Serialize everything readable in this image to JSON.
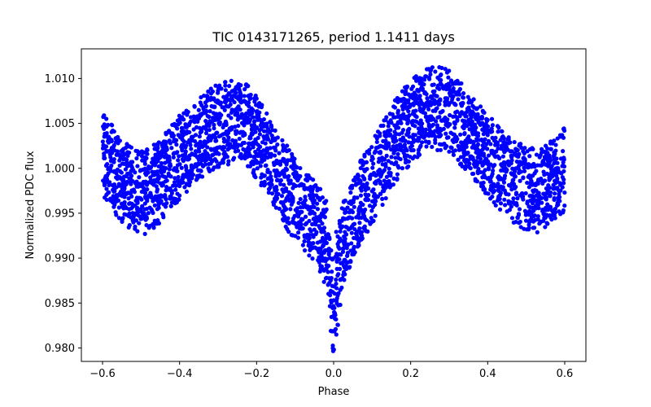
{
  "chart_data": {
    "type": "scatter",
    "title": "TIC 0143171265, period 1.1411 days",
    "xlabel": "Phase",
    "ylabel": "Normalized PDC flux",
    "xlim": [
      -0.655,
      0.655
    ],
    "ylim": [
      0.9785,
      1.0133
    ],
    "xticks": [
      -0.6,
      -0.4,
      -0.2,
      0.0,
      0.2,
      0.4,
      0.6
    ],
    "xtick_labels": [
      "−0.6",
      "−0.4",
      "−0.2",
      "0.0",
      "0.2",
      "0.4",
      "0.6"
    ],
    "yticks": [
      0.98,
      0.985,
      0.99,
      0.995,
      1.0,
      1.005,
      1.01
    ],
    "ytick_labels": [
      "0.980",
      "0.985",
      "0.990",
      "0.995",
      "1.000",
      "1.005",
      "1.010"
    ],
    "grid": false,
    "legend": "none",
    "marker_color": "#0000ff",
    "series": [
      {
        "values_description": "phase-folded light curve",
        "points": [
          [
            -0.6,
            1.0015
          ],
          [
            -0.58,
            1.0005
          ],
          [
            -0.56,
            0.999
          ],
          [
            -0.54,
            0.9982
          ],
          [
            -0.52,
            0.9975
          ],
          [
            -0.5,
            0.9972
          ],
          [
            -0.48,
            0.9975
          ],
          [
            -0.46,
            0.9982
          ],
          [
            -0.44,
            0.9992
          ],
          [
            -0.42,
            1.0003
          ],
          [
            -0.4,
            1.0012
          ],
          [
            -0.38,
            1.002
          ],
          [
            -0.36,
            1.0027
          ],
          [
            -0.34,
            1.0035
          ],
          [
            -0.32,
            1.0042
          ],
          [
            -0.3,
            1.0047
          ],
          [
            -0.28,
            1.005
          ],
          [
            -0.26,
            1.0052
          ],
          [
            -0.24,
            1.005
          ],
          [
            -0.22,
            1.0045
          ],
          [
            -0.2,
            1.0035
          ],
          [
            -0.18,
            1.0022
          ],
          [
            -0.16,
            1.0008
          ],
          [
            -0.14,
            0.9993
          ],
          [
            -0.12,
            0.9978
          ],
          [
            -0.1,
            0.9965
          ],
          [
            -0.08,
            0.9955
          ],
          [
            -0.06,
            0.9945
          ],
          [
            -0.04,
            0.9935
          ],
          [
            -0.02,
            0.9922
          ],
          [
            0.0,
            0.9885
          ],
          [
            0.02,
            0.9915
          ],
          [
            0.04,
            0.9935
          ],
          [
            0.06,
            0.9955
          ],
          [
            0.08,
            0.997
          ],
          [
            0.1,
            0.9985
          ],
          [
            0.12,
            1.0
          ],
          [
            0.14,
            1.0015
          ],
          [
            0.16,
            1.003
          ],
          [
            0.18,
            1.0042
          ],
          [
            0.2,
            1.0052
          ],
          [
            0.22,
            1.006
          ],
          [
            0.24,
            1.0064
          ],
          [
            0.26,
            1.0066
          ],
          [
            0.28,
            1.0067
          ],
          [
            0.3,
            1.0063
          ],
          [
            0.32,
            1.0055
          ],
          [
            0.34,
            1.0045
          ],
          [
            0.36,
            1.0035
          ],
          [
            0.38,
            1.0025
          ],
          [
            0.4,
            1.0015
          ],
          [
            0.42,
            1.0005
          ],
          [
            0.44,
            0.9995
          ],
          [
            0.46,
            0.9988
          ],
          [
            0.48,
            0.9982
          ],
          [
            0.5,
            0.9978
          ],
          [
            0.52,
            0.9975
          ],
          [
            0.54,
            0.9976
          ],
          [
            0.56,
            0.9982
          ],
          [
            0.58,
            0.999
          ],
          [
            0.6,
            1.0
          ]
        ],
        "scatter_half_width": 0.0042,
        "eclipse_center": 0.0,
        "eclipse_min": 0.9795
      }
    ]
  }
}
